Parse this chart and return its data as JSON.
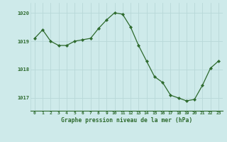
{
  "x": [
    0,
    1,
    2,
    3,
    4,
    5,
    6,
    7,
    8,
    9,
    10,
    11,
    12,
    13,
    14,
    15,
    16,
    17,
    18,
    19,
    20,
    21,
    22,
    23
  ],
  "y": [
    1019.1,
    1019.4,
    1019.0,
    1018.85,
    1018.85,
    1019.0,
    1019.05,
    1019.1,
    1019.45,
    1019.75,
    1020.0,
    1019.95,
    1019.5,
    1018.85,
    1018.3,
    1017.75,
    1017.55,
    1017.1,
    1017.0,
    1016.9,
    1016.95,
    1017.45,
    1018.05,
    1018.3
  ],
  "line_color": "#2d6a2d",
  "marker": "D",
  "marker_size": 2.2,
  "bg_color": "#ceeaea",
  "grid_color": "#b8d8d8",
  "xlabel": "Graphe pression niveau de la mer (hPa)",
  "xlabel_color": "#2d6a2d",
  "tick_label_color": "#2d6a2d",
  "ylim": [
    1016.55,
    1020.35
  ],
  "yticks": [
    1017,
    1018,
    1019,
    1020
  ],
  "xlim": [
    -0.5,
    23.5
  ],
  "xticks": [
    0,
    1,
    2,
    3,
    4,
    5,
    6,
    7,
    8,
    9,
    10,
    11,
    12,
    13,
    14,
    15,
    16,
    17,
    18,
    19,
    20,
    21,
    22,
    23
  ]
}
